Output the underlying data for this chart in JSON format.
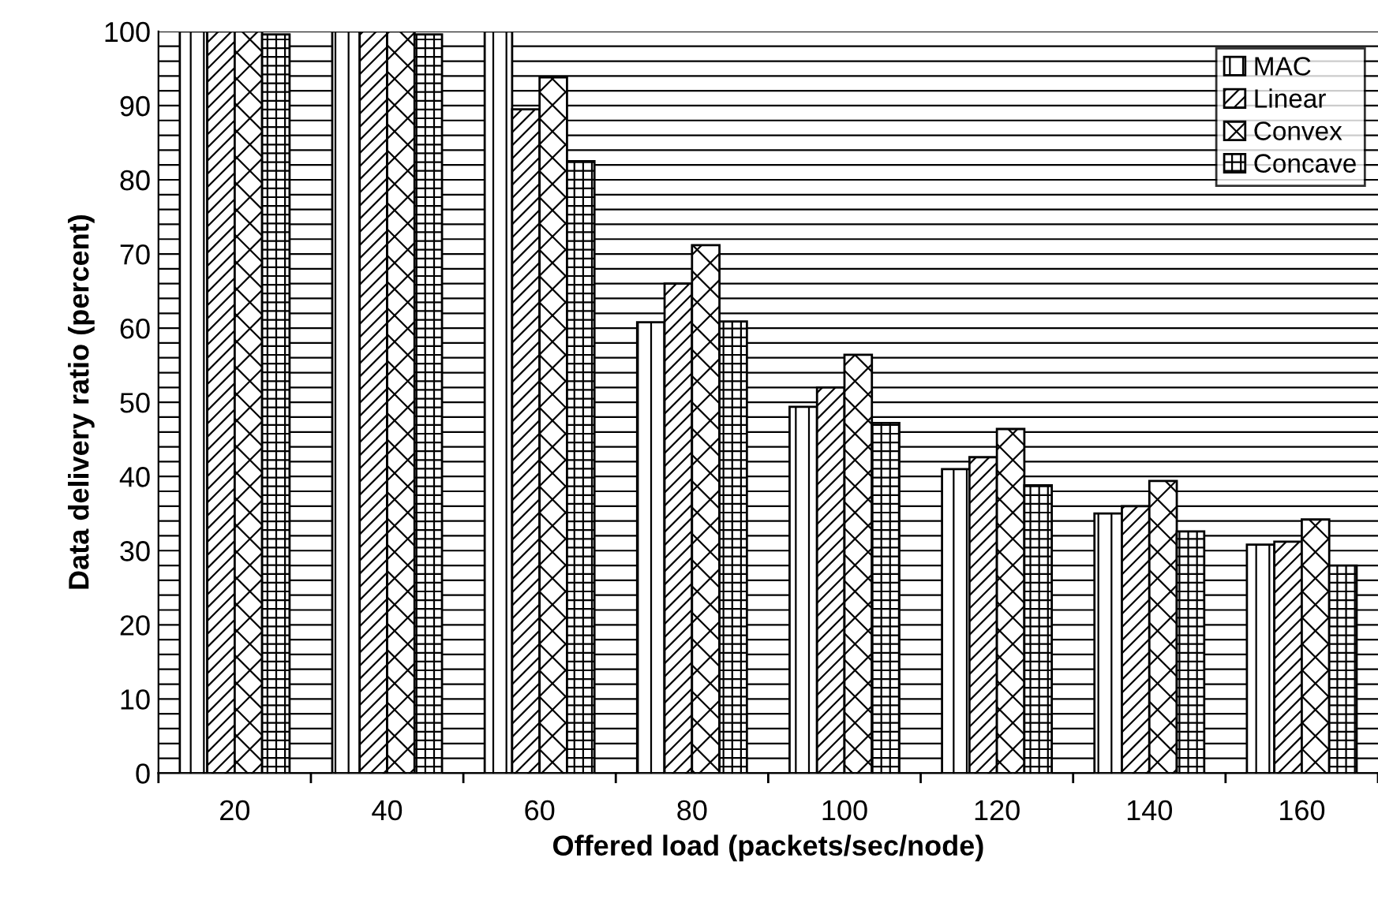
{
  "chart_data": {
    "type": "bar",
    "xlabel": "Offered load (packets/sec/node)",
    "ylabel": "Data delivery ratio (percent)",
    "categories": [
      "20",
      "40",
      "60",
      "80",
      "100",
      "120",
      "140",
      "160"
    ],
    "series": [
      {
        "name": "MAC",
        "color": "#000000",
        "values": [
          100,
          100,
          100,
          60.8,
          49.4,
          41,
          35,
          30.8
        ]
      },
      {
        "name": "Linear",
        "color": "#000000",
        "values": [
          100,
          100,
          89.5,
          66,
          52,
          42.6,
          36,
          31.2
        ]
      },
      {
        "name": "Convex",
        "color": "#000000",
        "values": [
          100,
          100,
          93.8,
          71.2,
          56.4,
          46.4,
          39.4,
          34.2
        ]
      },
      {
        "name": "Concave",
        "color": "#000000",
        "values": [
          99.6,
          99.6,
          82.5,
          60.9,
          47.2,
          38.8,
          32.6,
          28
        ]
      }
    ],
    "ylim": [
      0,
      100
    ],
    "yticks": [
      0,
      {
        "value": 2,
        "label": null
      },
      {
        "value": 4,
        "label": null
      },
      {
        "value": 6,
        "label": null
      },
      {
        "value": 8,
        "label": null
      },
      10,
      {
        "value": 12,
        "label": null
      },
      {
        "value": 14,
        "label": null
      },
      {
        "value": 16,
        "label": null
      },
      {
        "value": 18,
        "label": null
      },
      20,
      {
        "value": 22,
        "label": null
      },
      {
        "value": 24,
        "label": null
      },
      {
        "value": 26,
        "label": null
      },
      {
        "value": 28,
        "label": null
      },
      30,
      {
        "value": 32,
        "label": null
      },
      {
        "value": 34,
        "label": null
      },
      {
        "value": 36,
        "label": null
      },
      {
        "value": 38,
        "label": null
      },
      40,
      {
        "value": 42,
        "label": null
      },
      {
        "value": 44,
        "label": null
      },
      {
        "value": 46,
        "label": null
      },
      {
        "value": 48,
        "label": null
      },
      50,
      {
        "value": 52,
        "label": null
      },
      {
        "value": 54,
        "label": null
      },
      {
        "value": 56,
        "label": null
      },
      {
        "value": 58,
        "label": null
      },
      60,
      {
        "value": 62,
        "label": null
      },
      {
        "value": 64,
        "label": null
      },
      {
        "value": 66,
        "label": null
      },
      {
        "value": 68,
        "label": null
      },
      70,
      {
        "value": 72,
        "label": null
      },
      {
        "value": 74,
        "label": null
      },
      {
        "value": 76,
        "label": null
      },
      {
        "value": 78,
        "label": null
      },
      80,
      {
        "value": 82,
        "label": null
      },
      {
        "value": 84,
        "label": null
      },
      {
        "value": 86,
        "label": null
      },
      {
        "value": 88,
        "label": null
      },
      90,
      {
        "value": 92,
        "label": null
      },
      {
        "value": 94,
        "label": null
      },
      {
        "value": 96,
        "label": null
      },
      {
        "value": 98,
        "label": null
      },
      100
    ],
    "grid": "y",
    "legend": "top right"
  }
}
